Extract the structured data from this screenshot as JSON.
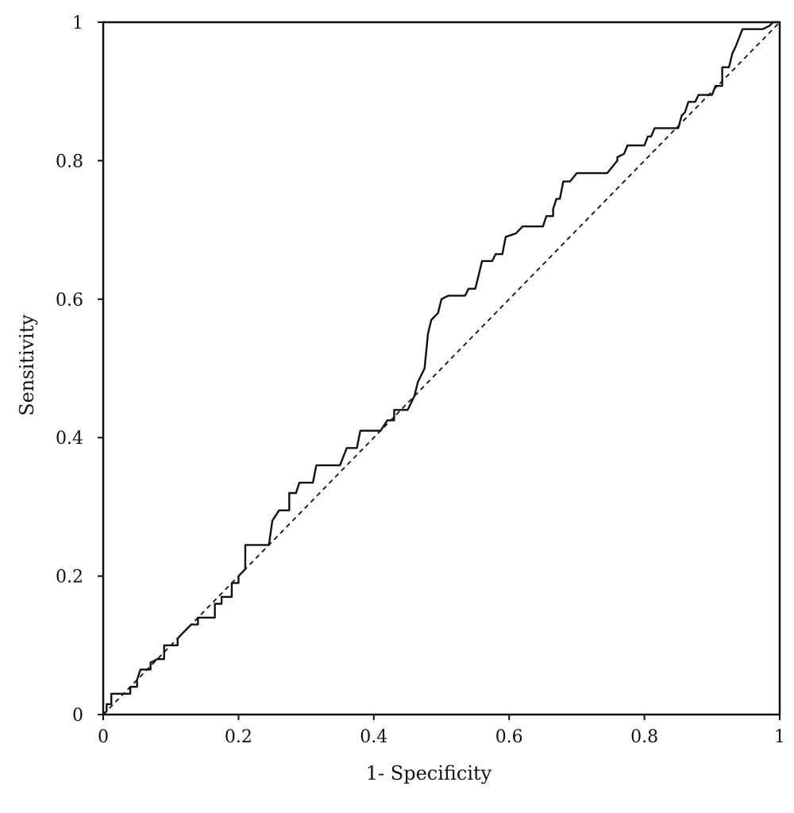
{
  "chart_data": {
    "type": "line",
    "title": "",
    "xlabel": "1- Specificity",
    "ylabel": "Sensitivity",
    "xlim": [
      0,
      1
    ],
    "ylim": [
      0,
      1
    ],
    "x_ticks": [
      "0",
      "0.2",
      "0.4",
      "0.6",
      "0.8",
      "1"
    ],
    "y_ticks": [
      "0",
      "0.2",
      "0.4",
      "0.6",
      "0.8",
      "1"
    ],
    "grid": false,
    "legend": "none",
    "series": [
      {
        "style": "solid",
        "color": "#111111",
        "points": [
          [
            0,
            0
          ],
          [
            0.005,
            0.005
          ],
          [
            0.005,
            0.015
          ],
          [
            0.012,
            0.015
          ],
          [
            0.012,
            0.03
          ],
          [
            0.04,
            0.03
          ],
          [
            0.04,
            0.04
          ],
          [
            0.05,
            0.04
          ],
          [
            0.05,
            0.05
          ],
          [
            0.055,
            0.065
          ],
          [
            0.07,
            0.065
          ],
          [
            0.07,
            0.075
          ],
          [
            0.08,
            0.08
          ],
          [
            0.09,
            0.08
          ],
          [
            0.09,
            0.1
          ],
          [
            0.11,
            0.1
          ],
          [
            0.11,
            0.11
          ],
          [
            0.12,
            0.12
          ],
          [
            0.13,
            0.13
          ],
          [
            0.14,
            0.13
          ],
          [
            0.14,
            0.14
          ],
          [
            0.165,
            0.14
          ],
          [
            0.165,
            0.16
          ],
          [
            0.175,
            0.16
          ],
          [
            0.175,
            0.17
          ],
          [
            0.19,
            0.17
          ],
          [
            0.19,
            0.19
          ],
          [
            0.2,
            0.19
          ],
          [
            0.2,
            0.2
          ],
          [
            0.21,
            0.21
          ],
          [
            0.21,
            0.245
          ],
          [
            0.245,
            0.245
          ],
          [
            0.25,
            0.28
          ],
          [
            0.26,
            0.295
          ],
          [
            0.275,
            0.295
          ],
          [
            0.275,
            0.32
          ],
          [
            0.285,
            0.32
          ],
          [
            0.29,
            0.335
          ],
          [
            0.31,
            0.335
          ],
          [
            0.315,
            0.36
          ],
          [
            0.35,
            0.36
          ],
          [
            0.36,
            0.385
          ],
          [
            0.375,
            0.385
          ],
          [
            0.38,
            0.41
          ],
          [
            0.41,
            0.41
          ],
          [
            0.42,
            0.425
          ],
          [
            0.43,
            0.425
          ],
          [
            0.43,
            0.44
          ],
          [
            0.45,
            0.44
          ],
          [
            0.46,
            0.46
          ],
          [
            0.465,
            0.48
          ],
          [
            0.475,
            0.5
          ],
          [
            0.48,
            0.55
          ],
          [
            0.485,
            0.57
          ],
          [
            0.495,
            0.58
          ],
          [
            0.5,
            0.6
          ],
          [
            0.51,
            0.605
          ],
          [
            0.535,
            0.605
          ],
          [
            0.54,
            0.615
          ],
          [
            0.55,
            0.615
          ],
          [
            0.555,
            0.635
          ],
          [
            0.56,
            0.655
          ],
          [
            0.575,
            0.655
          ],
          [
            0.58,
            0.665
          ],
          [
            0.59,
            0.665
          ],
          [
            0.595,
            0.69
          ],
          [
            0.61,
            0.695
          ],
          [
            0.62,
            0.705
          ],
          [
            0.65,
            0.705
          ],
          [
            0.655,
            0.72
          ],
          [
            0.665,
            0.72
          ],
          [
            0.665,
            0.73
          ],
          [
            0.67,
            0.745
          ],
          [
            0.675,
            0.745
          ],
          [
            0.68,
            0.77
          ],
          [
            0.69,
            0.77
          ],
          [
            0.7,
            0.782
          ],
          [
            0.745,
            0.782
          ],
          [
            0.76,
            0.8
          ],
          [
            0.76,
            0.805
          ],
          [
            0.77,
            0.81
          ],
          [
            0.775,
            0.822
          ],
          [
            0.8,
            0.822
          ],
          [
            0.805,
            0.835
          ],
          [
            0.81,
            0.835
          ],
          [
            0.815,
            0.847
          ],
          [
            0.85,
            0.847
          ],
          [
            0.855,
            0.865
          ],
          [
            0.86,
            0.87
          ],
          [
            0.865,
            0.885
          ],
          [
            0.875,
            0.885
          ],
          [
            0.88,
            0.895
          ],
          [
            0.9,
            0.895
          ],
          [
            0.905,
            0.908
          ],
          [
            0.915,
            0.908
          ],
          [
            0.915,
            0.935
          ],
          [
            0.925,
            0.935
          ],
          [
            0.93,
            0.955
          ],
          [
            0.935,
            0.965
          ],
          [
            0.945,
            0.99
          ],
          [
            0.975,
            0.99
          ],
          [
            0.985,
            0.995
          ],
          [
            0.99,
            1
          ],
          [
            1,
            1
          ]
        ]
      },
      {
        "style": "dashed",
        "color": "#111111",
        "points": [
          [
            0,
            0
          ],
          [
            1,
            1
          ]
        ]
      }
    ]
  }
}
